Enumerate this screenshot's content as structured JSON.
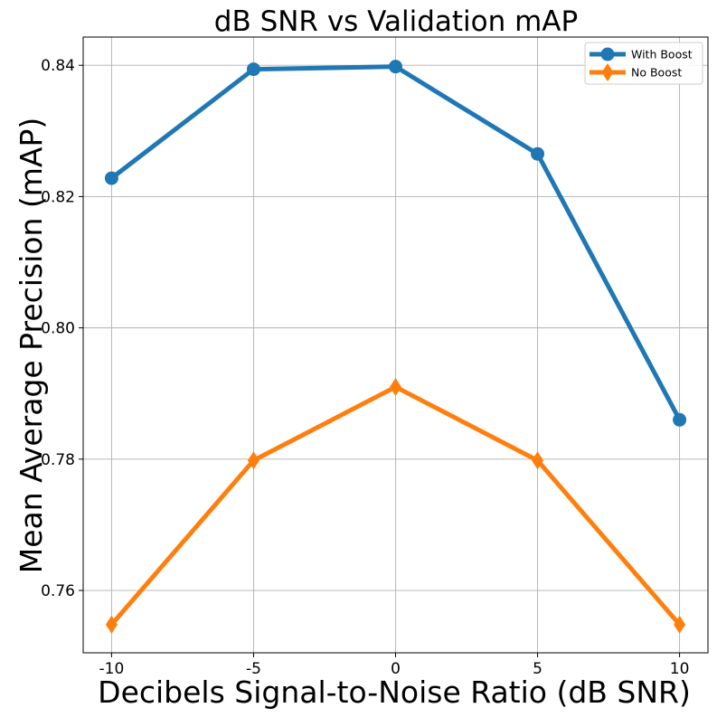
{
  "chart_data": {
    "type": "line",
    "title": "dB SNR vs Validation mAP",
    "xlabel": "Decibels Signal-to-Noise Ratio (dB SNR)",
    "ylabel": "Mean Average Precision (mAP)",
    "x": [
      -10,
      -5,
      0,
      5,
      10
    ],
    "x_tick_labels": [
      "-10",
      "-5",
      "0",
      "5",
      "10"
    ],
    "y_ticks": [
      0.76,
      0.78,
      0.8,
      0.82,
      0.84
    ],
    "y_tick_labels": [
      "0.76",
      "0.78",
      "0.80",
      "0.82",
      "0.84"
    ],
    "xlim": [
      -11,
      11
    ],
    "ylim": [
      0.7505,
      0.8443
    ],
    "grid": true,
    "legend_position": "top-right",
    "series": [
      {
        "name": "With Boost",
        "color": "#1f77b4",
        "marker": "circle",
        "values": [
          0.8228,
          0.8394,
          0.8398,
          0.8265,
          0.786
        ]
      },
      {
        "name": "No Boost",
        "color": "#ff7f0e",
        "marker": "diamond",
        "values": [
          0.7548,
          0.7798,
          0.791,
          0.7798,
          0.7548
        ]
      }
    ]
  }
}
